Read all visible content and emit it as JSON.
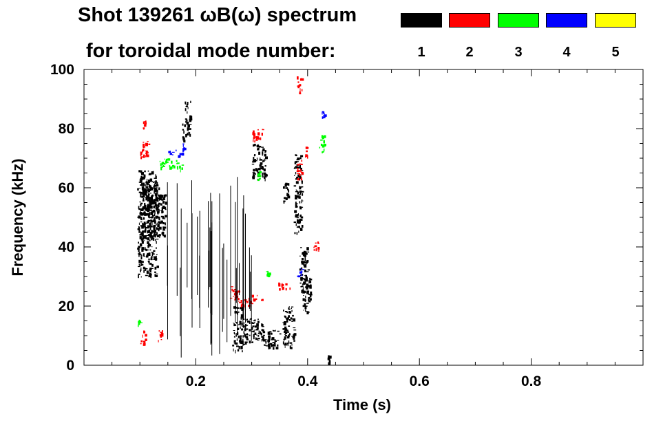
{
  "title": {
    "line1": "Shot 139261 ωB(ω) spectrum",
    "line2": "for toroidal mode number:"
  },
  "legend": [
    {
      "label": "1",
      "color": "#000000"
    },
    {
      "label": "2",
      "color": "#ff0000"
    },
    {
      "label": "3",
      "color": "#00ff00"
    },
    {
      "label": "4",
      "color": "#0000ff"
    },
    {
      "label": "5",
      "color": "#ffff00"
    }
  ],
  "chart_data": {
    "type": "heatmap",
    "title": "Shot 139261 ωB(ω) spectrum",
    "xlabel": "Time (s)",
    "ylabel": "Frequency (kHz)",
    "xlim": [
      0.0,
      1.0
    ],
    "ylim": [
      0,
      100
    ],
    "xticks": [
      "0.2",
      "0.4",
      "0.6",
      "0.8"
    ],
    "xtick_values": [
      0.2,
      0.4,
      0.6,
      0.8
    ],
    "yticks": [
      "0",
      "20",
      "40",
      "60",
      "80",
      "100"
    ],
    "ytick_values": [
      0,
      20,
      40,
      60,
      80,
      100
    ],
    "series": [
      {
        "name": "1",
        "color": "#000000",
        "regions": [
          {
            "t": [
              0.095,
              0.13
            ],
            "f": [
              30,
              66
            ]
          },
          {
            "t": [
              0.1,
              0.135
            ],
            "f": [
              42,
              62
            ]
          },
          {
            "t": [
              0.13,
              0.145
            ],
            "f": [
              44,
              58
            ]
          },
          {
            "t": [
              0.18,
              0.19
            ],
            "f": [
              78,
              90
            ]
          },
          {
            "t": [
              0.175,
              0.18
            ],
            "f": [
              76,
              82
            ]
          },
          {
            "t": [
              0.265,
              0.285
            ],
            "f": [
              5,
              20
            ]
          },
          {
            "t": [
              0.285,
              0.32
            ],
            "f": [
              8,
              16
            ]
          },
          {
            "t": [
              0.32,
              0.35
            ],
            "f": [
              6,
              12
            ]
          },
          {
            "t": [
              0.355,
              0.375
            ],
            "f": [
              6,
              20
            ]
          },
          {
            "t": [
              0.3,
              0.325
            ],
            "f": [
              63,
              75
            ]
          },
          {
            "t": [
              0.375,
              0.39
            ],
            "f": [
              45,
              72
            ]
          },
          {
            "t": [
              0.385,
              0.4
            ],
            "f": [
              25,
              40
            ]
          },
          {
            "t": [
              0.39,
              0.405
            ],
            "f": [
              18,
              30
            ]
          },
          {
            "t": [
              0.355,
              0.365
            ],
            "f": [
              55,
              62
            ]
          },
          {
            "t": [
              0.435,
              0.44
            ],
            "f": [
              1,
              4
            ]
          }
        ]
      },
      {
        "name": "2",
        "color": "#ff0000",
        "regions": [
          {
            "t": [
              0.1,
              0.115
            ],
            "f": [
              70,
              76
            ]
          },
          {
            "t": [
              0.105,
              0.11
            ],
            "f": [
              80,
              83
            ]
          },
          {
            "t": [
              0.26,
              0.275
            ],
            "f": [
              22,
              27
            ]
          },
          {
            "t": [
              0.275,
              0.3
            ],
            "f": [
              20,
              23
            ]
          },
          {
            "t": [
              0.3,
              0.32
            ],
            "f": [
              22,
              24
            ]
          },
          {
            "t": [
              0.345,
              0.37
            ],
            "f": [
              26,
              28
            ]
          },
          {
            "t": [
              0.38,
              0.39
            ],
            "f": [
              92,
              98
            ]
          },
          {
            "t": [
              0.38,
              0.39
            ],
            "f": [
              63,
              70
            ]
          },
          {
            "t": [
              0.395,
              0.4
            ],
            "f": [
              70,
              74
            ]
          },
          {
            "t": [
              0.41,
              0.42
            ],
            "f": [
              38,
              42
            ]
          },
          {
            "t": [
              0.3,
              0.32
            ],
            "f": [
              76,
              80
            ]
          },
          {
            "t": [
              0.1,
              0.11
            ],
            "f": [
              7,
              12
            ]
          },
          {
            "t": [
              0.13,
              0.14
            ],
            "f": [
              8,
              12
            ]
          }
        ]
      },
      {
        "name": "3",
        "color": "#00ff00",
        "regions": [
          {
            "t": [
              0.135,
              0.165
            ],
            "f": [
              67,
              70
            ]
          },
          {
            "t": [
              0.165,
              0.175
            ],
            "f": [
              66,
              69
            ]
          },
          {
            "t": [
              0.42,
              0.43
            ],
            "f": [
              72,
              78
            ]
          },
          {
            "t": [
              0.095,
              0.1
            ],
            "f": [
              13,
              16
            ]
          },
          {
            "t": [
              0.325,
              0.33
            ],
            "f": [
              30,
              32
            ]
          },
          {
            "t": [
              0.31,
              0.315
            ],
            "f": [
              63,
              66
            ]
          }
        ]
      },
      {
        "name": "4",
        "color": "#0000ff",
        "regions": [
          {
            "t": [
              0.15,
              0.175
            ],
            "f": [
              71,
              73
            ]
          },
          {
            "t": [
              0.175,
              0.18
            ],
            "f": [
              73,
              75
            ]
          },
          {
            "t": [
              0.425,
              0.43
            ],
            "f": [
              84,
              86
            ]
          },
          {
            "t": [
              0.38,
              0.39
            ],
            "f": [
              30,
              33
            ]
          }
        ]
      },
      {
        "name": "5",
        "color": "#ffff00",
        "regions": []
      }
    ]
  }
}
